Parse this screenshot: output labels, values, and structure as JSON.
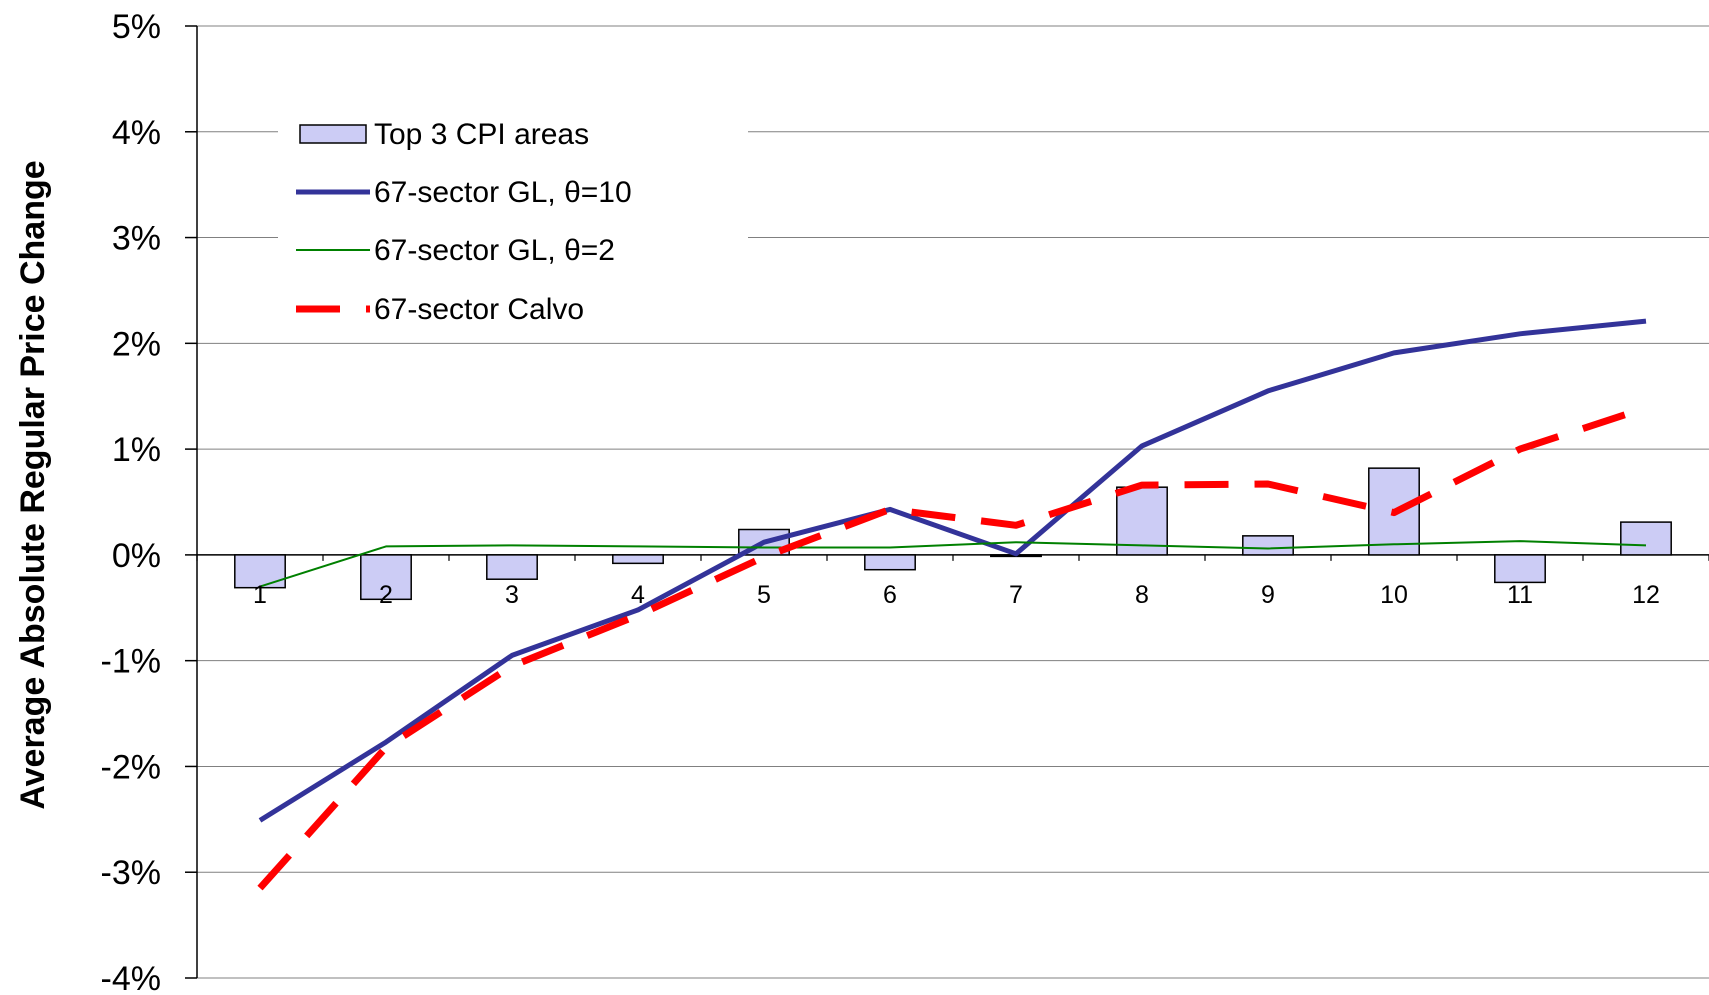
{
  "chart_data": {
    "type": "bar",
    "ylabel": "Average Absolute Regular Price Change",
    "xlabel": "",
    "ylim": [
      -0.04,
      0.05
    ],
    "ytick_values": [
      -0.04,
      -0.03,
      -0.02,
      -0.01,
      0,
      0.01,
      0.02,
      0.03,
      0.04,
      0.05
    ],
    "ytick_labels": [
      "-4%",
      "-3%",
      "-2%",
      "-1%",
      "0%",
      "1%",
      "2%",
      "3%",
      "4%",
      "5%"
    ],
    "categories": [
      "1",
      "2",
      "3",
      "4",
      "5",
      "6",
      "7",
      "8",
      "9",
      "10",
      "11",
      "12"
    ],
    "grid": true,
    "legend_position": "top-left",
    "series": [
      {
        "name": "Top 3 CPI areas",
        "kind": "bar",
        "color": "#ccccf5",
        "values": [
          -0.0031,
          -0.0042,
          -0.0023,
          -0.0008,
          0.0024,
          -0.0014,
          -0.0001,
          0.0064,
          0.0018,
          0.0082,
          -0.0026,
          0.0031
        ]
      },
      {
        "name": "67-sector GL, θ=10",
        "kind": "line",
        "color": "#333399",
        "values": [
          -0.0251,
          -0.0177,
          -0.0095,
          -0.0052,
          0.0012,
          0.0043,
          0.0001,
          0.0103,
          0.0155,
          0.0191,
          0.0209,
          0.0221
        ]
      },
      {
        "name": "67-sector GL, θ=2",
        "kind": "line",
        "color": "#008000",
        "values": [
          -0.003,
          0.0008,
          0.0009,
          0.0008,
          0.0007,
          0.0007,
          0.0012,
          0.0009,
          0.0006,
          0.001,
          0.0013,
          0.0009
        ]
      },
      {
        "name": "67-sector Calvo",
        "kind": "line",
        "dashed": true,
        "color": "#ff0000",
        "values": [
          -0.0315,
          -0.0182,
          -0.0105,
          -0.0057,
          -0.0002,
          0.0043,
          0.0028,
          0.0066,
          0.0067,
          0.004,
          0.01,
          0.0139
        ]
      }
    ]
  }
}
